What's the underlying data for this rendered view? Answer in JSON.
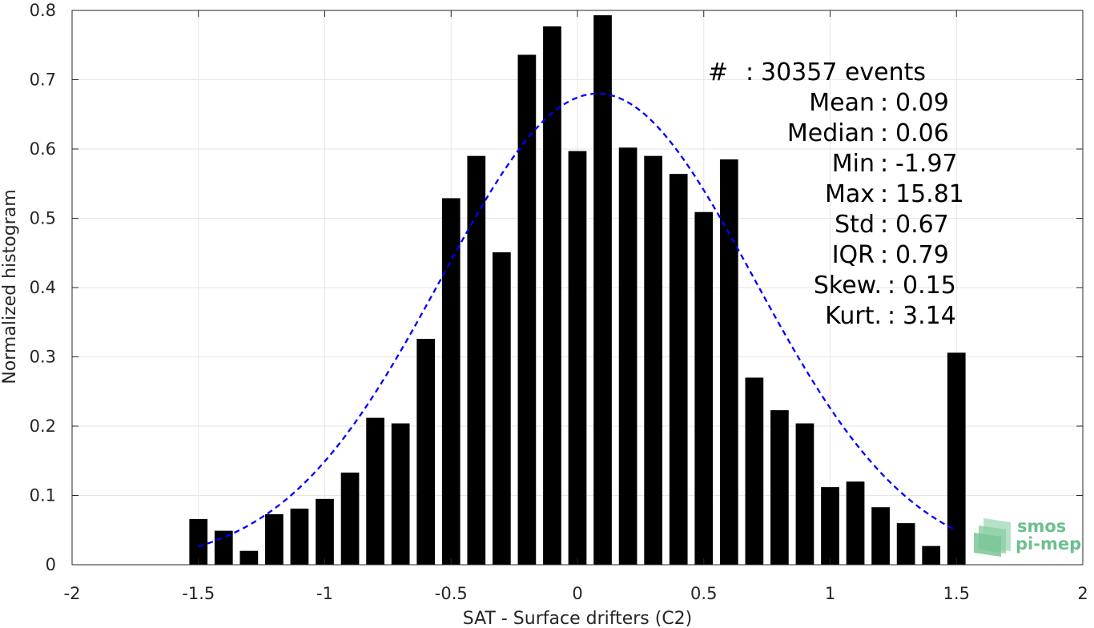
{
  "chart_data": {
    "type": "bar",
    "xlabel": "SAT - Surface drifters (C2)",
    "ylabel": "Normalized histogram",
    "xlim": [
      -2,
      2
    ],
    "ylim": [
      0,
      0.8
    ],
    "xticks": [
      -2,
      -1.5,
      -1,
      -0.5,
      0,
      0.5,
      1,
      1.5,
      2
    ],
    "xtick_labels": [
      "-2",
      "-1.5",
      "-1",
      "-0.5",
      "0",
      "0.5",
      "1",
      "1.5",
      "2"
    ],
    "yticks": [
      0,
      0.1,
      0.2,
      0.3,
      0.4,
      0.5,
      0.6,
      0.7,
      0.8
    ],
    "ytick_labels": [
      "0",
      "0.1",
      "0.2",
      "0.3",
      "0.4",
      "0.5",
      "0.6",
      "0.7",
      "0.8"
    ],
    "grid": true,
    "bar_width": 0.072,
    "bars": {
      "x": [
        -1.5,
        -1.4,
        -1.3,
        -1.2,
        -1.1,
        -1.0,
        -0.9,
        -0.8,
        -0.7,
        -0.6,
        -0.5,
        -0.4,
        -0.3,
        -0.2,
        -0.1,
        0.0,
        0.1,
        0.2,
        0.3,
        0.4,
        0.5,
        0.6,
        0.7,
        0.8,
        0.9,
        1.0,
        1.1,
        1.2,
        1.3,
        1.4,
        1.5
      ],
      "values": [
        0.066,
        0.049,
        0.02,
        0.073,
        0.081,
        0.095,
        0.133,
        0.212,
        0.204,
        0.326,
        0.529,
        0.59,
        0.451,
        0.736,
        0.777,
        0.597,
        0.793,
        0.602,
        0.59,
        0.564,
        0.509,
        0.585,
        0.27,
        0.223,
        0.204,
        0.112,
        0.12,
        0.083,
        0.06,
        0.027,
        0.306
      ]
    },
    "fit_curve": {
      "style": "dashed",
      "mean": 0.08,
      "std": 0.62,
      "peak": 0.68,
      "x_range": [
        -1.5,
        1.5
      ]
    },
    "colors": {
      "bars": "#000000",
      "curve": "#0000ff"
    },
    "stats": [
      {
        "label": "#",
        "sep": ":",
        "value": "30357 events"
      },
      {
        "label": "Mean",
        "sep": ":",
        "value": "0.09"
      },
      {
        "label": "Median",
        "sep": ":",
        "value": "0.06"
      },
      {
        "label": "Min",
        "sep": ":",
        "value": "-1.97"
      },
      {
        "label": "Max",
        "sep": ":",
        "value": "15.81"
      },
      {
        "label": "Std",
        "sep": ":",
        "value": "0.67"
      },
      {
        "label": "IQR",
        "sep": ":",
        "value": "0.79"
      },
      {
        "label": "Skew.",
        "sep": ":",
        "value": "0.15"
      },
      {
        "label": "Kurt.",
        "sep": ":",
        "value": "3.14"
      }
    ]
  },
  "logo": {
    "line1": "smos",
    "line2": "pi-mep",
    "color": "#6cc08e"
  }
}
